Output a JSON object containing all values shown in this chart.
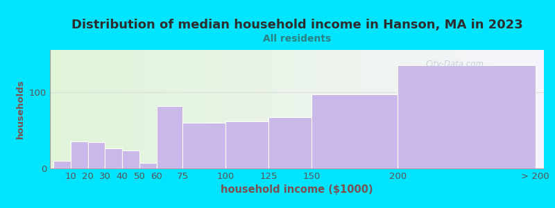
{
  "title": "Distribution of median household income in Hanson, MA in 2023",
  "subtitle": "All residents",
  "xlabel": "household income ($1000)",
  "ylabel": "households",
  "bar_lefts": [
    0,
    10,
    20,
    30,
    40,
    50,
    60,
    75,
    100,
    125,
    150,
    200
  ],
  "bar_widths": [
    10,
    10,
    10,
    10,
    10,
    10,
    15,
    25,
    25,
    25,
    50,
    80
  ],
  "bar_values": [
    10,
    35,
    34,
    26,
    24,
    7,
    82,
    60,
    62,
    67,
    97,
    135
  ],
  "bar_color": "#c9b8e8",
  "bar_edge_color": "#ffffff",
  "background_outer": "#00e5ff",
  "title_color": "#2d2d2d",
  "subtitle_color": "#2d8080",
  "axis_label_color": "#7a5050",
  "tick_label_color": "#555555",
  "watermark_text": "City-Data.com",
  "xlim": [
    -2,
    285
  ],
  "ylim": [
    0,
    155
  ],
  "yticks": [
    0,
    100
  ],
  "xtick_positions": [
    10,
    20,
    30,
    40,
    50,
    60,
    75,
    100,
    125,
    150,
    200,
    280
  ],
  "xtick_labels": [
    "10",
    "20",
    "30",
    "40",
    "50",
    "60",
    "75",
    "100",
    "125",
    "150",
    "200",
    "> 200"
  ],
  "title_fontsize": 13,
  "subtitle_fontsize": 10,
  "label_fontsize": 9.5
}
